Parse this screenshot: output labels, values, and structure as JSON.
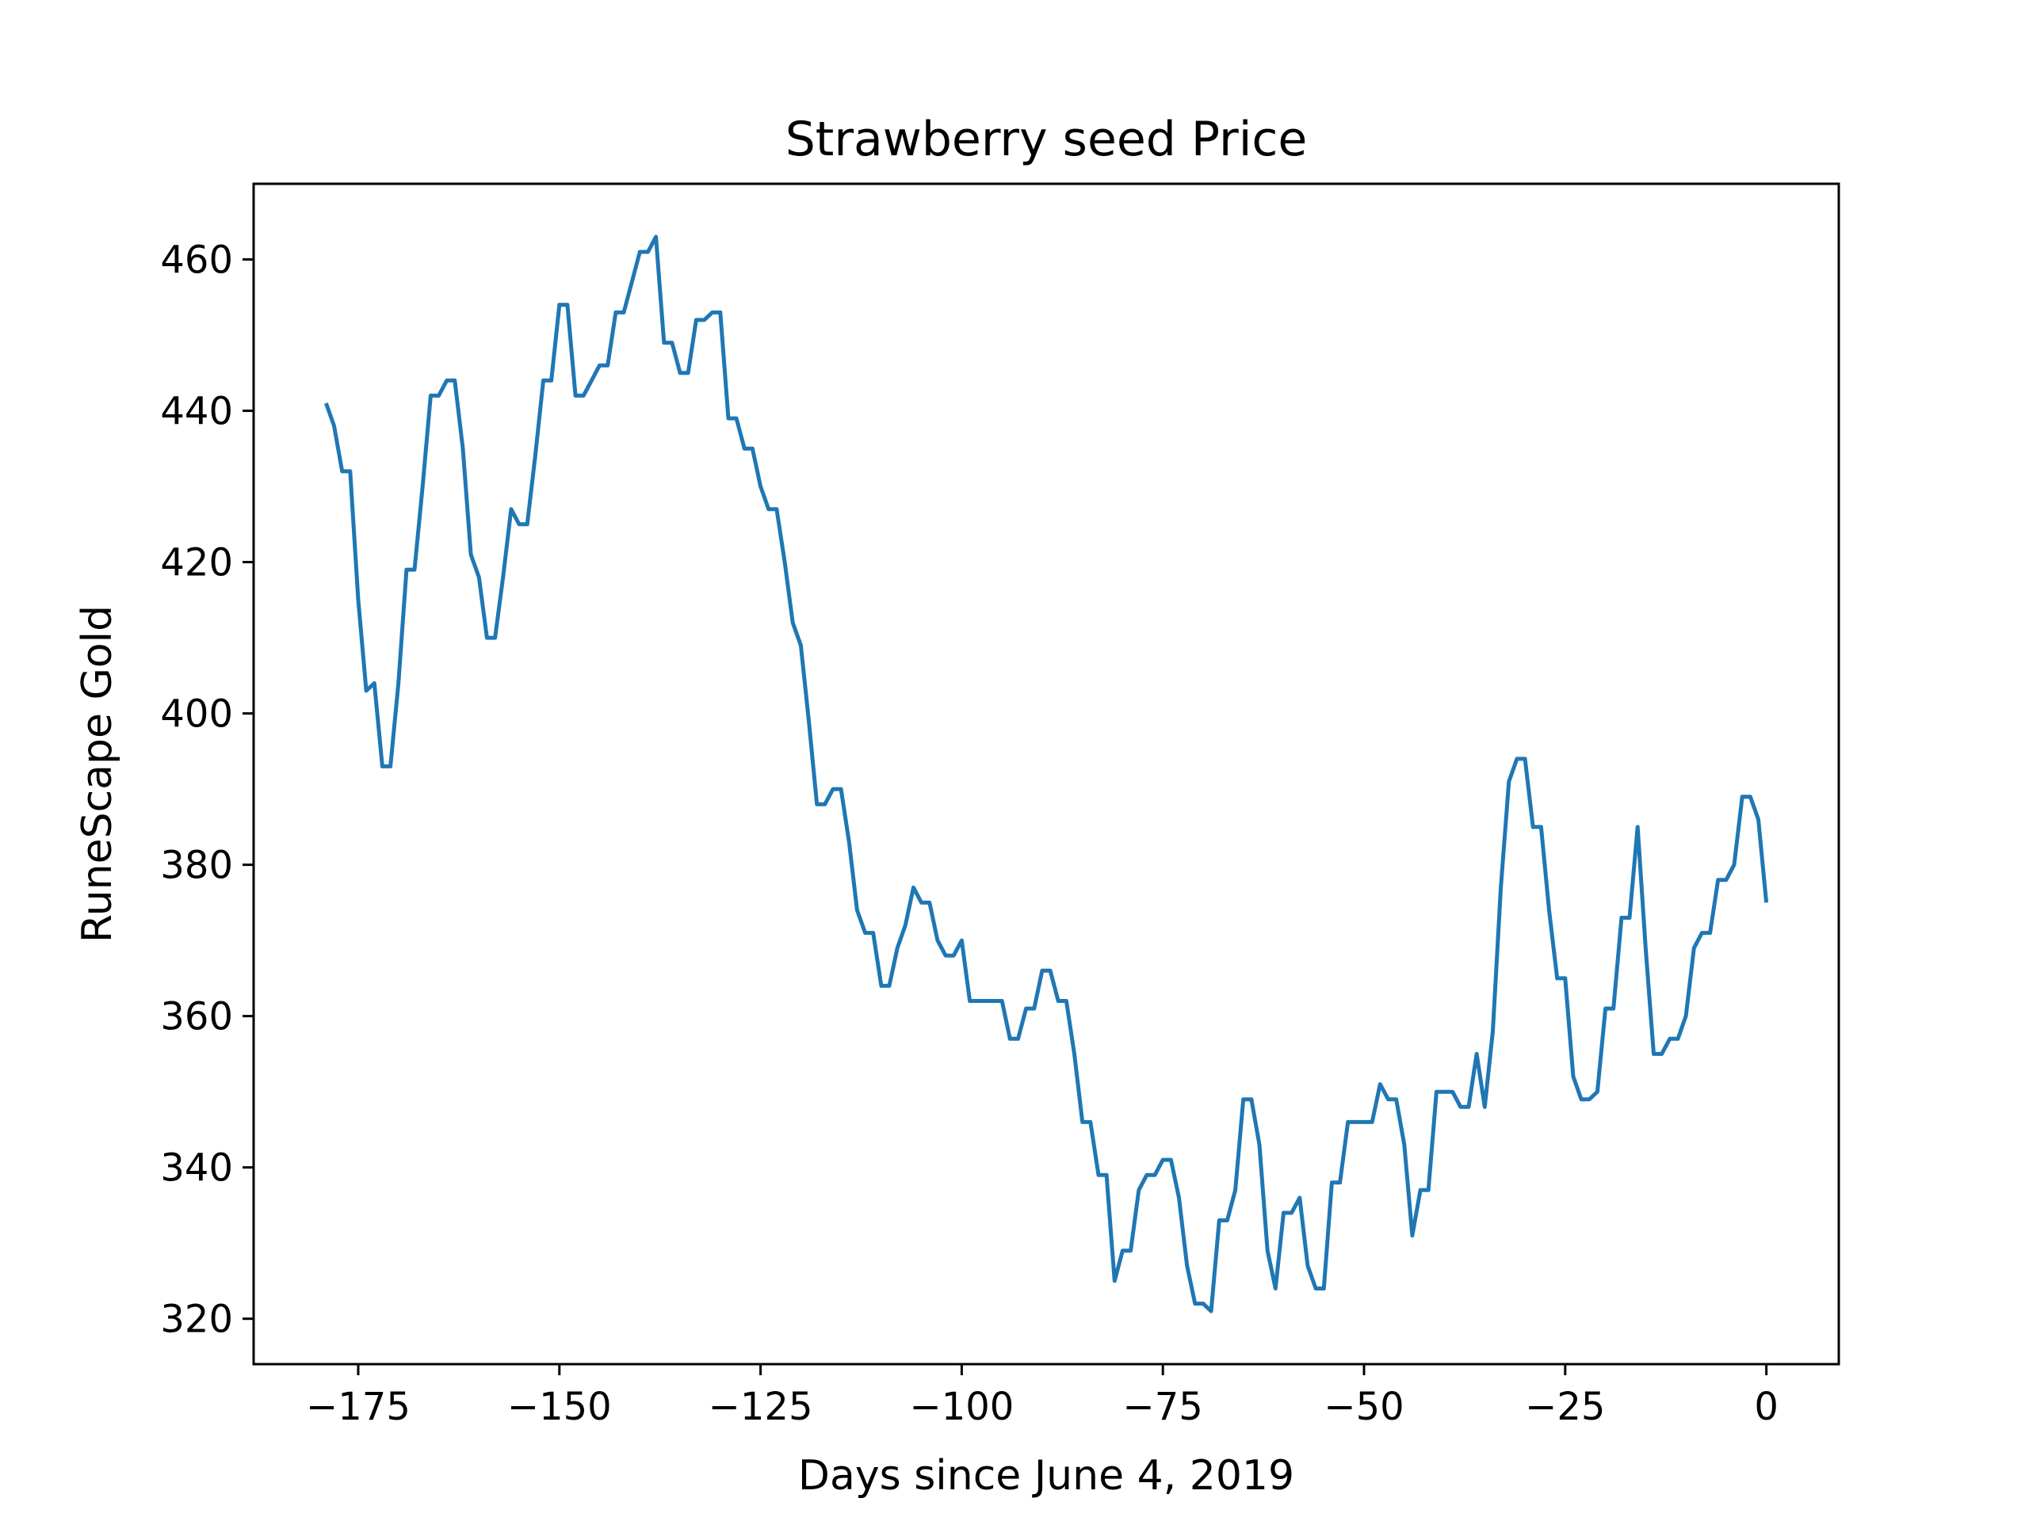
{
  "chart_data": {
    "type": "line",
    "title": "Strawberry seed Price",
    "xlabel": "Days since June 4, 2019",
    "ylabel": "RuneScape Gold",
    "xlim": [
      -188,
      9
    ],
    "ylim": [
      314,
      470
    ],
    "xticks": [
      -175,
      -150,
      -125,
      -100,
      -75,
      -50,
      -25,
      0
    ],
    "xtick_labels": [
      "−175",
      "−150",
      "−125",
      "−100",
      "−75",
      "−50",
      "−25",
      "0"
    ],
    "yticks": [
      320,
      340,
      360,
      380,
      400,
      420,
      440,
      460
    ],
    "ytick_labels": [
      "320",
      "340",
      "360",
      "380",
      "400",
      "420",
      "440",
      "460"
    ],
    "grid": false,
    "series": [
      {
        "color": "#1f77b4",
        "x": [
          -179,
          -178,
          -177,
          -176,
          -175,
          -174,
          -173,
          -172,
          -171,
          -170,
          -169,
          -168,
          -167,
          -166,
          -165,
          -164,
          -163,
          -162,
          -161,
          -160,
          -159,
          -158,
          -157,
          -156,
          -155,
          -154,
          -153,
          -152,
          -151,
          -150,
          -149,
          -148,
          -147,
          -146,
          -145,
          -144,
          -143,
          -142,
          -141,
          -140,
          -139,
          -138,
          -137,
          -136,
          -135,
          -134,
          -133,
          -132,
          -131,
          -130,
          -129,
          -128,
          -127,
          -126,
          -125,
          -124,
          -123,
          -122,
          -121,
          -120,
          -119,
          -118,
          -117,
          -116,
          -115,
          -114,
          -113,
          -112,
          -111,
          -110,
          -109,
          -108,
          -107,
          -106,
          -105,
          -104,
          -103,
          -102,
          -101,
          -100,
          -99,
          -98,
          -97,
          -96,
          -95,
          -94,
          -93,
          -92,
          -91,
          -90,
          -89,
          -88,
          -87,
          -86,
          -85,
          -84,
          -83,
          -82,
          -81,
          -80,
          -79,
          -78,
          -77,
          -76,
          -75,
          -74,
          -73,
          -72,
          -71,
          -70,
          -69,
          -68,
          -67,
          -66,
          -65,
          -64,
          -63,
          -62,
          -61,
          -60,
          -59,
          -58,
          -57,
          -56,
          -55,
          -54,
          -53,
          -52,
          -51,
          -50,
          -49,
          -48,
          -47,
          -46,
          -45,
          -44,
          -43,
          -42,
          -41,
          -40,
          -39,
          -38,
          -37,
          -36,
          -35,
          -34,
          -33,
          -32,
          -31,
          -30,
          -29,
          -28,
          -27,
          -26,
          -25,
          -24,
          -23,
          -22,
          -21,
          -20,
          -19,
          -18,
          -17,
          -16,
          -15,
          -14,
          -13,
          -12,
          -11,
          -10,
          -9,
          -8,
          -7,
          -6,
          -5,
          -4,
          -3,
          -2,
          -1,
          0
        ],
        "y": [
          441,
          438,
          432,
          432,
          415,
          403,
          404,
          393,
          393,
          404,
          419,
          419,
          430,
          442,
          442,
          444,
          444,
          435,
          421,
          418,
          410,
          410,
          418,
          427,
          425,
          425,
          434,
          444,
          444,
          454,
          454,
          442,
          442,
          444,
          446,
          446,
          453,
          453,
          457,
          461,
          461,
          463,
          449,
          449,
          445,
          445,
          452,
          452,
          453,
          453,
          439,
          439,
          435,
          435,
          430,
          427,
          427,
          420,
          412,
          409,
          399,
          388,
          388,
          390,
          390,
          383,
          374,
          371,
          371,
          364,
          364,
          369,
          372,
          377,
          375,
          375,
          370,
          368,
          368,
          370,
          362,
          362,
          362,
          362,
          362,
          357,
          357,
          361,
          361,
          366,
          366,
          362,
          362,
          355,
          346,
          346,
          339,
          339,
          325,
          329,
          329,
          337,
          339,
          339,
          341,
          341,
          336,
          327,
          322,
          322,
          321,
          333,
          333,
          337,
          349,
          349,
          343,
          329,
          324,
          334,
          334,
          336,
          327,
          324,
          324,
          338,
          338,
          346,
          346,
          346,
          346,
          351,
          349,
          349,
          343,
          331,
          337,
          337,
          350,
          350,
          350,
          348,
          348,
          355,
          348,
          358,
          377,
          391,
          394,
          394,
          385,
          385,
          374,
          365,
          365,
          352,
          349,
          349,
          350,
          361,
          361,
          373,
          373,
          385,
          369,
          355,
          355,
          357,
          357,
          360,
          369,
          371,
          371,
          378,
          378,
          380,
          389,
          389,
          386,
          375
        ]
      }
    ]
  }
}
